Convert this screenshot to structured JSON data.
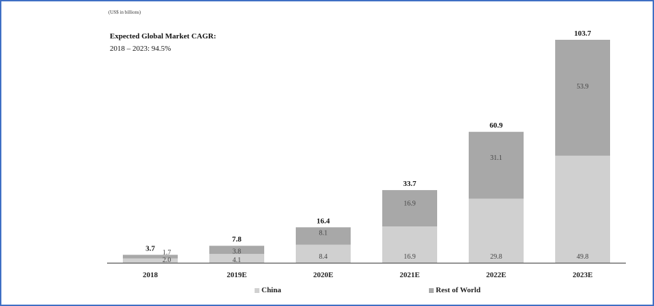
{
  "unit_note": "(US$ in billions)",
  "cagr": {
    "title": "Expected Global Market CAGR:",
    "subtitle": "2018 – 2023: 94.5%"
  },
  "colors": {
    "china": "#d0d0d0",
    "rest_of_world": "#a8a8a8",
    "axis": "#555555",
    "frame": "#3f6fc4"
  },
  "chart_data": {
    "type": "bar",
    "stacked": true,
    "categories": [
      "2018",
      "2019E",
      "2020E",
      "2021E",
      "2022E",
      "2023E"
    ],
    "series": [
      {
        "name": "China",
        "values": [
          2.0,
          4.1,
          8.4,
          16.9,
          29.8,
          49.8
        ]
      },
      {
        "name": "Rest of World",
        "values": [
          1.7,
          3.8,
          8.1,
          16.9,
          31.1,
          53.9
        ]
      }
    ],
    "totals": [
      "3.7",
      "7.8",
      "16.4",
      "33.7",
      "60.9",
      "103.7"
    ],
    "value_labels": {
      "China": [
        "2.0",
        "4.1",
        "8.4",
        "16.9",
        "29.8",
        "49.8"
      ],
      "Rest of World": [
        "1.7",
        "3.8",
        "8.1",
        "16.9",
        "31.1",
        "53.9"
      ]
    },
    "title": "",
    "xlabel": "",
    "ylabel": "",
    "ylim": [
      0,
      103.7
    ],
    "grid": false,
    "legend_position": "bottom"
  },
  "legend": {
    "china_label": "China",
    "row_label": "Rest of World"
  }
}
